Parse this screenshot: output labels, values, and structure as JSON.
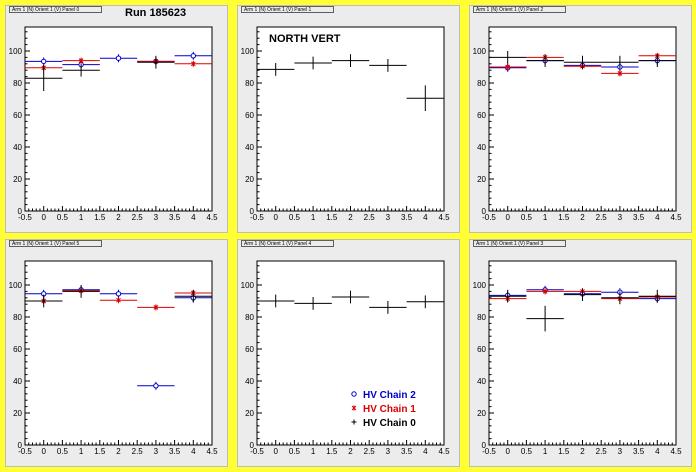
{
  "colors": {
    "hv2": "#0000cc",
    "hv1": "#dd0000",
    "hv0": "#000000",
    "background": "#ffff33"
  },
  "legend": {
    "hv2": "HV Chain 2",
    "hv1": "HV Chain 1",
    "hv0": "HV Chain 0",
    "placement": "bottom-right of panel 5"
  },
  "chart_data": [
    {
      "type": "scatter",
      "title": "Arm 1 (N) Orient 1 (V) Panel 0",
      "annotation": "Run 185623",
      "xlim": [
        -0.5,
        4.5
      ],
      "ylim": [
        0,
        115
      ],
      "xticks": [
        "-0.5",
        "0",
        "0.5",
        "1",
        "1.5",
        "2",
        "2.5",
        "3",
        "3.5",
        "4",
        "4.5"
      ],
      "yticks": [
        "0",
        "20",
        "40",
        "60",
        "80",
        "100"
      ],
      "series": [
        {
          "name": "HV Chain 2",
          "points": [
            [
              0,
              93.5
            ],
            [
              1,
              91.5
            ],
            [
              2,
              95.5
            ],
            [
              3,
              93.5
            ],
            [
              4,
              97
            ]
          ]
        },
        {
          "name": "HV Chain 1",
          "points": [
            [
              0,
              89.5
            ],
            [
              1,
              94
            ],
            [
              3,
              93.5
            ],
            [
              4,
              92
            ]
          ]
        },
        {
          "name": "HV Chain 0",
          "points": [
            [
              0,
              83
            ],
            [
              1,
              88
            ],
            [
              3,
              93
            ]
          ]
        }
      ]
    },
    {
      "type": "scatter",
      "title": "Arm 1 (N) Orient 1 (V) Panel 1",
      "annotation": "NORTH VERT",
      "xlim": [
        -0.5,
        4.5
      ],
      "ylim": [
        0,
        115
      ],
      "xticks": [
        "-0.5",
        "0",
        "0.5",
        "1",
        "1.5",
        "2",
        "2.5",
        "3",
        "3.5",
        "4",
        "4.5"
      ],
      "yticks": [
        "0",
        "20",
        "40",
        "60",
        "80",
        "100"
      ],
      "series": [
        {
          "name": "HV Chain 0",
          "points": [
            [
              0,
              88.5
            ],
            [
              1,
              92.5
            ],
            [
              2,
              94
            ],
            [
              3,
              91
            ],
            [
              4,
              70.5
            ]
          ]
        }
      ]
    },
    {
      "type": "scatter",
      "title": "Arm 1 (N) Orient 1 (V) Panel 2",
      "xlim": [
        -0.5,
        4.5
      ],
      "ylim": [
        0,
        115
      ],
      "xticks": [
        "-0.5",
        "0",
        "0.5",
        "1",
        "1.5",
        "2",
        "2.5",
        "3",
        "3.5",
        "4",
        "4.5"
      ],
      "yticks": [
        "0",
        "20",
        "40",
        "60",
        "80",
        "100"
      ],
      "series": [
        {
          "name": "HV Chain 2",
          "points": [
            [
              0,
              89.5
            ],
            [
              1,
              94
            ],
            [
              2,
              91
            ],
            [
              3,
              90
            ],
            [
              4,
              94
            ]
          ]
        },
        {
          "name": "HV Chain 1",
          "points": [
            [
              0,
              90
            ],
            [
              1,
              96
            ],
            [
              2,
              90.5
            ],
            [
              3,
              86
            ],
            [
              4,
              97
            ]
          ]
        },
        {
          "name": "HV Chain 0",
          "points": [
            [
              0,
              96
            ],
            [
              1,
              94
            ],
            [
              2,
              93
            ],
            [
              3,
              93
            ],
            [
              4,
              94
            ]
          ]
        }
      ]
    },
    {
      "type": "scatter",
      "title": "Arm 1 (N) Orient 1 (V) Panel 5",
      "xlim": [
        -0.5,
        4.5
      ],
      "ylim": [
        0,
        115
      ],
      "xticks": [
        "-0.5",
        "0",
        "0.5",
        "1",
        "1.5",
        "2",
        "2.5",
        "3",
        "3.5",
        "4",
        "4.5"
      ],
      "yticks": [
        "0",
        "20",
        "40",
        "60",
        "80",
        "100"
      ],
      "series": [
        {
          "name": "HV Chain 2",
          "points": [
            [
              0,
              94.5
            ],
            [
              1,
              97
            ],
            [
              2,
              94.5
            ],
            [
              3,
              37
            ],
            [
              4,
              92
            ]
          ]
        },
        {
          "name": "HV Chain 1",
          "points": [
            [
              0,
              90
            ],
            [
              1,
              96.5
            ],
            [
              2,
              90.5
            ],
            [
              3,
              86
            ],
            [
              4,
              95
            ]
          ]
        },
        {
          "name": "HV Chain 0",
          "points": [
            [
              0,
              90
            ],
            [
              1,
              96
            ],
            [
              4,
              93
            ]
          ]
        }
      ]
    },
    {
      "type": "scatter",
      "title": "Arm 1 (N) Orient 1 (V) Panel 4",
      "xlim": [
        -0.5,
        4.5
      ],
      "ylim": [
        0,
        115
      ],
      "xticks": [
        "-0.5",
        "0",
        "0.5",
        "1",
        "1.5",
        "2",
        "2.5",
        "3",
        "3.5",
        "4",
        "4.5"
      ],
      "yticks": [
        "0",
        "20",
        "40",
        "60",
        "80",
        "100"
      ],
      "series": [
        {
          "name": "HV Chain 0",
          "points": [
            [
              0,
              90
            ],
            [
              1,
              88.5
            ],
            [
              2,
              92.5
            ],
            [
              3,
              86
            ],
            [
              4,
              89.5
            ]
          ]
        }
      ]
    },
    {
      "type": "scatter",
      "title": "Arm 1 (N) Orient 1 (V) Panel 3",
      "xlim": [
        -0.5,
        4.5
      ],
      "ylim": [
        0,
        115
      ],
      "xticks": [
        "-0.5",
        "0",
        "0.5",
        "1",
        "1.5",
        "2",
        "2.5",
        "3",
        "3.5",
        "4",
        "4.5"
      ],
      "yticks": [
        "0",
        "20",
        "40",
        "60",
        "80",
        "100"
      ],
      "series": [
        {
          "name": "HV Chain 2",
          "points": [
            [
              0,
              93.5
            ],
            [
              1,
              97
            ],
            [
              2,
              94.5
            ],
            [
              3,
              95.5
            ],
            [
              4,
              91.5
            ]
          ]
        },
        {
          "name": "HV Chain 1",
          "points": [
            [
              0,
              91.5
            ],
            [
              1,
              96
            ],
            [
              2,
              96
            ],
            [
              3,
              91.5
            ],
            [
              4,
              92.5
            ]
          ]
        },
        {
          "name": "HV Chain 0",
          "points": [
            [
              0,
              93
            ],
            [
              1,
              79
            ],
            [
              2,
              94
            ],
            [
              3,
              92
            ],
            [
              4,
              93
            ]
          ]
        }
      ]
    }
  ]
}
